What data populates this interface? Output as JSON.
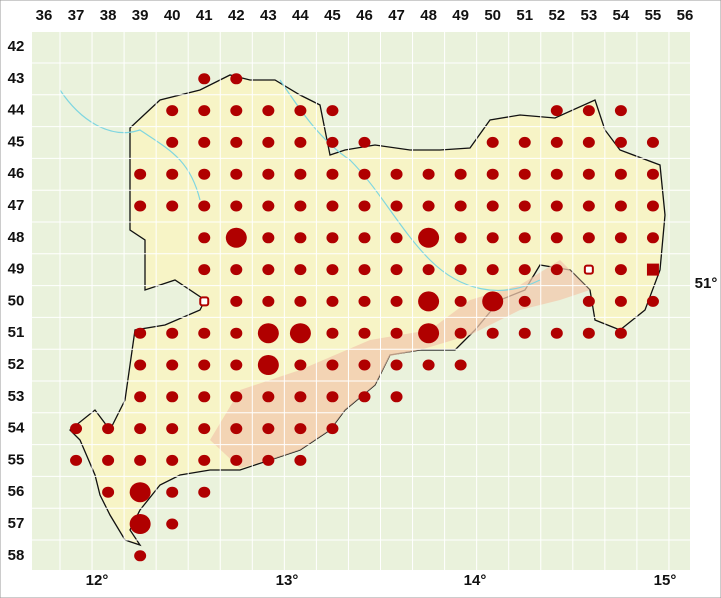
{
  "columns": [
    36,
    37,
    38,
    39,
    40,
    41,
    42,
    43,
    44,
    45,
    46,
    47,
    48,
    49,
    50,
    51,
    52,
    53,
    54,
    55,
    56
  ],
  "rows": [
    42,
    43,
    44,
    45,
    46,
    47,
    48,
    49,
    50,
    51,
    52,
    53,
    54,
    55,
    56,
    57,
    58
  ],
  "longitudes": [
    "12°",
    "13°",
    "14°",
    "15°"
  ],
  "latitude": "51°",
  "records": [
    {
      "row": 43,
      "dots": [
        41,
        42
      ]
    },
    {
      "row": 44,
      "dots": [
        40,
        41,
        42,
        43,
        44,
        45,
        52,
        53,
        54
      ]
    },
    {
      "row": 45,
      "dots": [
        40,
        41,
        42,
        43,
        44,
        45,
        46,
        50,
        51,
        52,
        53,
        54,
        55
      ]
    },
    {
      "row": 46,
      "dots": [
        39,
        40,
        41,
        42,
        43,
        44,
        45,
        46,
        47,
        48,
        49,
        50,
        51,
        52,
        53,
        54,
        55
      ]
    },
    {
      "row": 47,
      "dots": [
        39,
        40,
        41,
        42,
        43,
        44,
        45,
        46,
        47,
        48,
        49,
        50,
        51,
        52,
        53,
        54,
        55
      ]
    },
    {
      "row": 48,
      "dots": [
        41,
        43,
        44,
        45,
        46,
        47,
        49,
        50,
        51,
        52,
        53,
        54,
        55
      ],
      "large": [
        42,
        48
      ]
    },
    {
      "row": 49,
      "dots": [
        41,
        42,
        43,
        44,
        45,
        46,
        47,
        48,
        49,
        50,
        51,
        52,
        54
      ],
      "open": [
        53
      ],
      "square": [
        55
      ]
    },
    {
      "row": 50,
      "dots": [
        42,
        43,
        44,
        45,
        46,
        47,
        49,
        51,
        53,
        54,
        55
      ],
      "large": [
        48,
        50
      ],
      "open": [
        41
      ]
    },
    {
      "row": 51,
      "dots": [
        39,
        40,
        41,
        42,
        45,
        46,
        47,
        49,
        50,
        51,
        52,
        53,
        54
      ],
      "large": [
        43,
        44,
        48
      ]
    },
    {
      "row": 52,
      "dots": [
        39,
        40,
        41,
        42,
        44,
        45,
        46,
        47,
        48,
        49
      ],
      "large": [
        43
      ]
    },
    {
      "row": 53,
      "dots": [
        39,
        40,
        41,
        42,
        43,
        44,
        45,
        46,
        47
      ]
    },
    {
      "row": 54,
      "dots": [
        37,
        38,
        39,
        40,
        41,
        42,
        43,
        44,
        45
      ]
    },
    {
      "row": 55,
      "dots": [
        37,
        38,
        39,
        40,
        41,
        42,
        43,
        44
      ]
    },
    {
      "row": 56,
      "dots": [
        38,
        40,
        41
      ],
      "large": [
        39
      ]
    },
    {
      "row": 57,
      "dots": [
        40
      ],
      "large": [
        39
      ]
    },
    {
      "row": 58,
      "dots": [
        39
      ]
    }
  ]
}
